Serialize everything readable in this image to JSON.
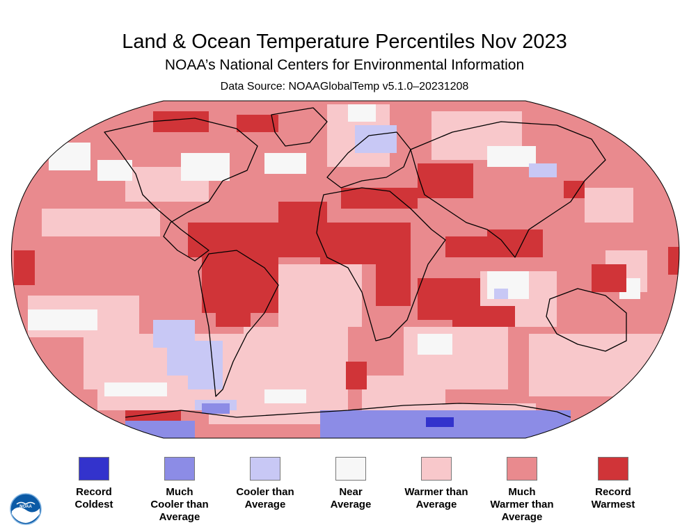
{
  "header": {
    "title": "Land & Ocean Temperature Percentiles Nov 2023",
    "subtitle": "NOAA’s National Centers for Environmental Information",
    "source": "Data Source: NOAAGlobalTemp v5.1.0–20231208"
  },
  "colors": {
    "record_coldest": "#3333cc",
    "much_cooler": "#8c8ce6",
    "cooler": "#c8c8f5",
    "near": "#f7f7f7",
    "warmer": "#f8c8cb",
    "much_warmer": "#e98a8e",
    "record_warmest": "#d03438"
  },
  "legend": [
    {
      "label": "Record\nColdest",
      "color": "#3333cc"
    },
    {
      "label": "Much\nCooler than\nAverage",
      "color": "#8c8ce6"
    },
    {
      "label": "Cooler than\nAverage",
      "color": "#c8c8f5"
    },
    {
      "label": "Near\nAverage",
      "color": "#f7f7f7"
    },
    {
      "label": "Warmer than\nAverage",
      "color": "#f8c8cb"
    },
    {
      "label": "Much\nWarmer than\nAverage",
      "color": "#e98a8e"
    },
    {
      "label": "Record\nWarmest",
      "color": "#d03438"
    }
  ],
  "logo": {
    "text": "NOAA"
  }
}
